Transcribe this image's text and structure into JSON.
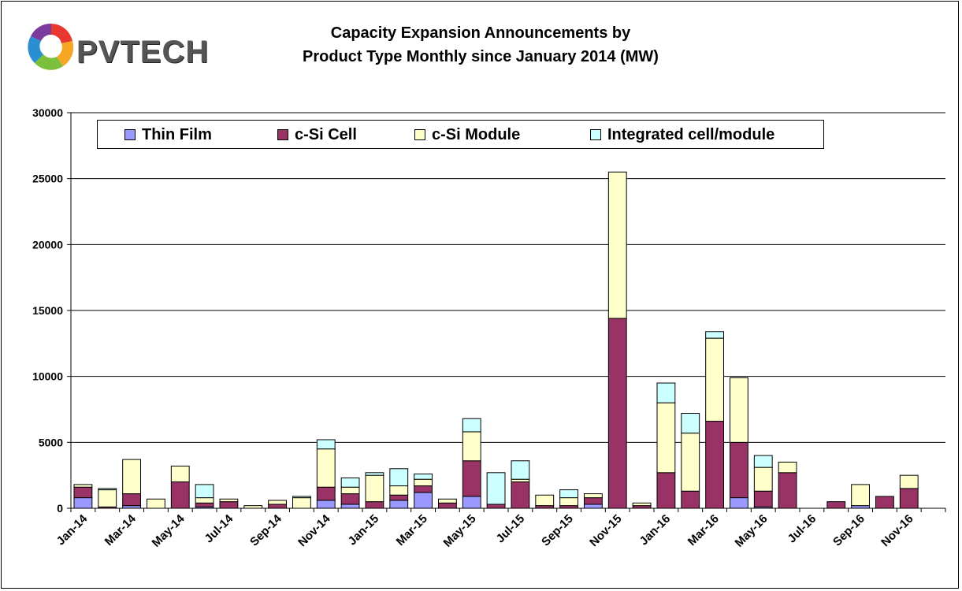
{
  "header": {
    "logo_text": "PVTECH",
    "title_line1": "Capacity Expansion Announcements by",
    "title_line2": "Product Type Monthly since January 2014 (MW)"
  },
  "chart_data": {
    "type": "bar",
    "stacked": true,
    "title": "Capacity Expansion Announcements by Product Type Monthly since January 2014 (MW)",
    "xlabel": "",
    "ylabel": "",
    "ylim": [
      0,
      30000
    ],
    "yticks": [
      0,
      5000,
      10000,
      15000,
      20000,
      25000,
      30000
    ],
    "grid": true,
    "legend_position": "top",
    "categories": [
      "Jan-14",
      "Feb-14",
      "Mar-14",
      "Apr-14",
      "May-14",
      "Jun-14",
      "Jul-14",
      "Aug-14",
      "Sep-14",
      "Oct-14",
      "Nov-14",
      "Dec-14",
      "Jan-15",
      "Feb-15",
      "Mar-15",
      "Apr-15",
      "May-15",
      "Jun-15",
      "Jul-15",
      "Aug-15",
      "Sep-15",
      "Oct-15",
      "Nov-15",
      "Dec-15",
      "Jan-16",
      "Feb-16",
      "Mar-16",
      "Apr-16",
      "May-16",
      "Jun-16",
      "Jul-16",
      "Aug-16",
      "Sep-16",
      "Oct-16",
      "Nov-16",
      "Dec-16"
    ],
    "visible_tick_labels": [
      "Jan-14",
      "Mar-14",
      "May-14",
      "Jul-14",
      "Sep-14",
      "Nov-14",
      "Jan-15",
      "Mar-15",
      "May-15",
      "Jul-15",
      "Sep-15",
      "Nov-15",
      "Jan-16",
      "Mar-16",
      "May-16",
      "Jul-16",
      "Sep-16",
      "Nov-16"
    ],
    "series": [
      {
        "name": "Thin Film",
        "color": "#9999ff",
        "values": [
          800,
          0,
          200,
          0,
          0,
          100,
          0,
          0,
          0,
          0,
          600,
          300,
          0,
          600,
          1200,
          0,
          900,
          0,
          0,
          0,
          0,
          300,
          0,
          0,
          0,
          0,
          0,
          800,
          100,
          0,
          0,
          0,
          200,
          0,
          0,
          0
        ]
      },
      {
        "name": "c-Si Cell",
        "color": "#993366",
        "values": [
          800,
          100,
          900,
          0,
          2000,
          300,
          500,
          0,
          300,
          0,
          1000,
          800,
          500,
          400,
          500,
          400,
          2700,
          300,
          2000,
          200,
          200,
          500,
          14400,
          200,
          2700,
          1300,
          6600,
          4200,
          1200,
          2700,
          0,
          500,
          0,
          900,
          1500,
          0
        ]
      },
      {
        "name": "c-Si Module",
        "color": "#ffffcc",
        "values": [
          200,
          1300,
          2600,
          700,
          1200,
          400,
          200,
          200,
          300,
          800,
          2900,
          500,
          2000,
          700,
          500,
          300,
          2200,
          0,
          200,
          800,
          600,
          300,
          11100,
          200,
          5300,
          4400,
          6300,
          4900,
          1800,
          800,
          0,
          0,
          1600,
          0,
          1000,
          0
        ]
      },
      {
        "name": "Integrated cell/module",
        "color": "#ccffff",
        "values": [
          0,
          100,
          0,
          0,
          0,
          1000,
          0,
          0,
          0,
          100,
          700,
          700,
          200,
          1300,
          400,
          0,
          1000,
          2400,
          1400,
          0,
          600,
          0,
          0,
          0,
          1500,
          1500,
          500,
          0,
          900,
          0,
          0,
          0,
          0,
          0,
          0,
          0
        ]
      }
    ]
  }
}
